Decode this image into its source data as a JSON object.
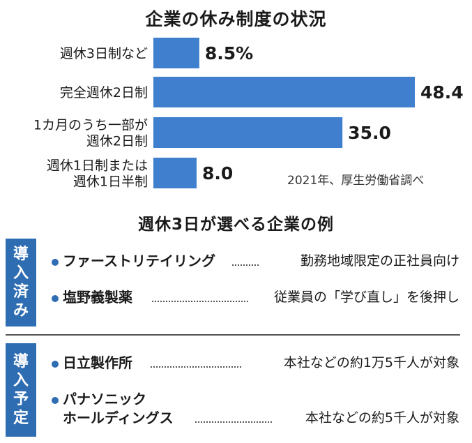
{
  "chart_data": {
    "type": "bar",
    "orientation": "horizontal",
    "title": "企業の休み制度の状況",
    "categories": [
      [
        "週休3日制など"
      ],
      [
        "完全週休2日制"
      ],
      [
        "1カ月のうち一部が",
        "週休2日制"
      ],
      [
        "週休1日制または",
        "週休1日半制"
      ]
    ],
    "values": [
      8.5,
      48.4,
      35.0,
      8.0
    ],
    "value_labels": [
      "8.5%",
      "48.4",
      "35.0",
      "8.0"
    ],
    "bar_color": "#3f7fce",
    "xlim": [
      0,
      48.4
    ],
    "grid": false,
    "source": "2021年、厚生労働省調べ"
  },
  "examples": {
    "title": "週休3日が選べる企業の例",
    "accent": "#2f6db3",
    "groups": [
      {
        "label_chars": [
          "導",
          "入",
          "済",
          "み"
        ],
        "items": [
          {
            "company": [
              "ファーストリテイリング"
            ],
            "description": "勤務地域限定の正社員向け"
          },
          {
            "company": [
              "塩野義製薬"
            ],
            "description": "従業員の「学び直し」を後押し"
          }
        ]
      },
      {
        "label_chars": [
          "導",
          "入",
          "予",
          "定"
        ],
        "items": [
          {
            "company": [
              "日立製作所"
            ],
            "description": "本社などの約1万5千人が対象"
          },
          {
            "company": [
              "パナソニック",
              "ホールディングス"
            ],
            "description": "本社などの約5千人が対象"
          }
        ]
      }
    ]
  }
}
